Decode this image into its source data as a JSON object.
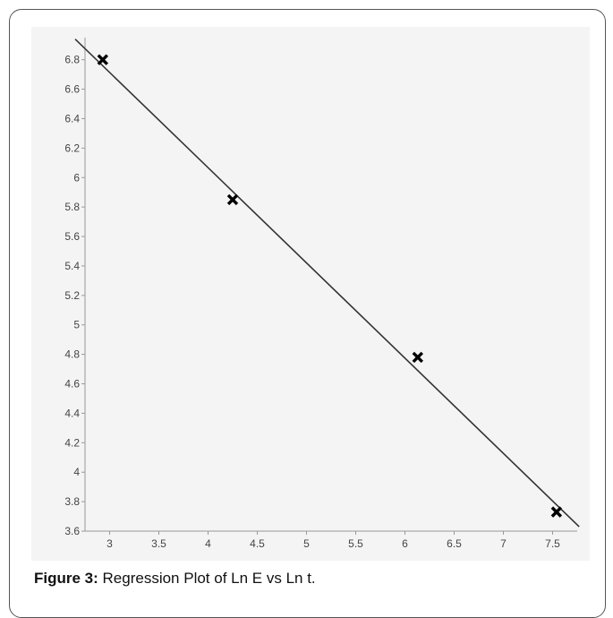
{
  "figure": {
    "caption_label": "Figure 3:",
    "caption_text": " Regression Plot of Ln E vs Ln t."
  },
  "chart_data": {
    "type": "scatter",
    "title": "",
    "xlabel": "",
    "ylabel": "",
    "xlim": [
      2.75,
      7.75
    ],
    "ylim": [
      3.6,
      6.95
    ],
    "x_ticks": [
      3,
      3.5,
      4,
      4.5,
      5,
      5.5,
      6,
      6.5,
      7,
      7.5
    ],
    "x_tick_labels": [
      "3",
      "3.5",
      "4",
      "4.5",
      "5",
      "5.5",
      "6",
      "6.5",
      "7",
      "7.5"
    ],
    "y_ticks": [
      3.6,
      3.8,
      4,
      4.2,
      4.4,
      4.6,
      4.8,
      5,
      5.2,
      5.4,
      5.6,
      5.8,
      6,
      6.2,
      6.4,
      6.6,
      6.8
    ],
    "y_tick_labels": [
      "3.6",
      "3.8",
      "4",
      "4.2",
      "4.4",
      "4.6",
      "4.8",
      "5",
      "5.2",
      "5.4",
      "5.6",
      "5.8",
      "6",
      "6.2",
      "6.4",
      "6.6",
      "6.8"
    ],
    "grid": false,
    "series": [
      {
        "type": "scatter",
        "marker": "x",
        "color": "#000000",
        "points": [
          {
            "x": 2.93,
            "y": 6.8
          },
          {
            "x": 4.25,
            "y": 5.85
          },
          {
            "x": 6.13,
            "y": 4.78
          },
          {
            "x": 7.54,
            "y": 3.73
          }
        ]
      },
      {
        "type": "line",
        "color": "#333333",
        "points": [
          {
            "x": 2.65,
            "y": 6.94
          },
          {
            "x": 7.77,
            "y": 3.63
          }
        ]
      }
    ]
  }
}
